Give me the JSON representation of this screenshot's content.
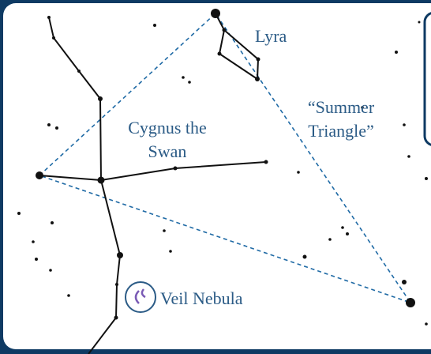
{
  "labels": {
    "lyra": "Lyra",
    "cygnus": [
      "Cygnus the",
      "Swan"
    ],
    "triangle": [
      "“Summer",
      "Triangle”"
    ],
    "veil": "Veil Nebula"
  }
}
